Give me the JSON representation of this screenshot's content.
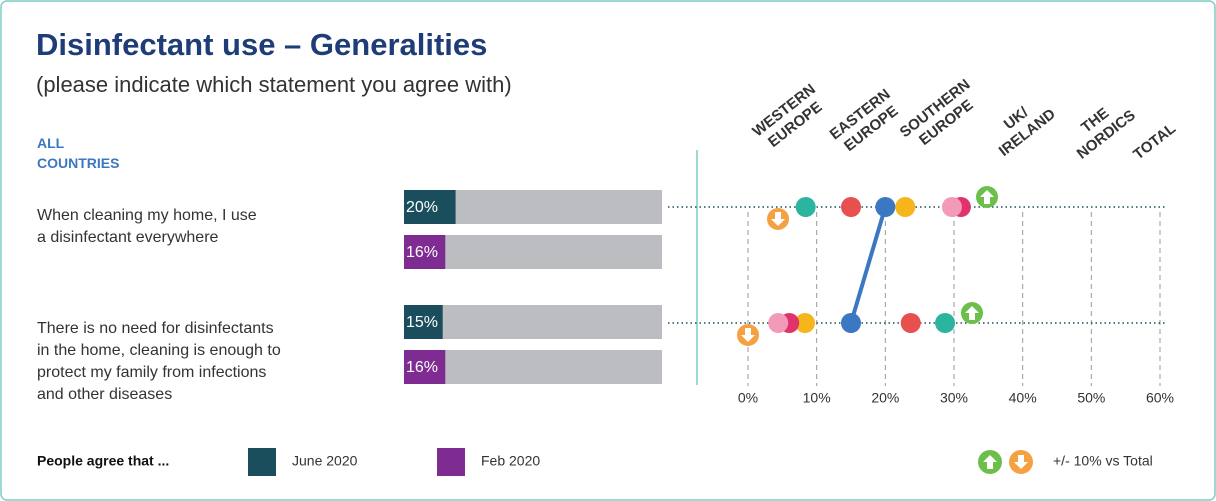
{
  "title": "Disinfectant use – Generalities",
  "subtitle": "(please indicate which statement you agree with)",
  "group_label": "ALL\nCOUNTRIES",
  "legend": {
    "title": "People agree that ...",
    "note": "+/- 10% vs Total"
  },
  "chart_data": [
    {
      "type": "bar",
      "orientation": "horizontal",
      "categories": [
        "When cleaning my home, I use\na disinfectant everywhere",
        "There is no need for disinfectants\nin the home, cleaning is enough to\nprotect my family from infections\nand other diseases"
      ],
      "series": [
        {
          "name": "June 2020",
          "color": "#1b4e5d",
          "values": [
            20,
            15
          ],
          "value_labels": [
            "20%",
            "15%"
          ]
        },
        {
          "name": "Feb 2020",
          "color": "#7e2c91",
          "values": [
            16,
            16
          ],
          "value_labels": [
            "16%",
            "16%"
          ]
        }
      ],
      "track_color": "#bcbdc0",
      "xlim": [
        0,
        100
      ]
    },
    {
      "type": "dot",
      "series": [
        {
          "name": "WESTERN\nEUROPE",
          "color": "#e8504f",
          "values": [
            15,
            23.7
          ]
        },
        {
          "name": "EASTERN\nEUROPE",
          "color": "#f7b51c",
          "values": [
            22.9,
            8.3
          ]
        },
        {
          "name": "SOUTHERN\nEUROPE",
          "color": "#e0336b",
          "values": [
            31,
            6
          ]
        },
        {
          "name": "UK/\nIRELAND",
          "color": "#f49ab9",
          "values": [
            29.7,
            4.4
          ]
        },
        {
          "name": "THE\nNORDICS",
          "color": "#2bb59f",
          "values": [
            8.4,
            28.7
          ]
        },
        {
          "name": "TOTAL",
          "color": "#3b78c1",
          "values": [
            20,
            15
          ]
        }
      ],
      "xlim": [
        0,
        60
      ],
      "xticks": [
        {
          "value": 0,
          "label": "0%"
        },
        {
          "value": 10,
          "label": "10%"
        },
        {
          "value": 20,
          "label": "20%"
        },
        {
          "value": 30,
          "label": "30%"
        },
        {
          "value": 40,
          "label": "40%"
        },
        {
          "value": 50,
          "label": "50%"
        },
        {
          "value": 60,
          "label": "60%"
        }
      ],
      "grid": true
    }
  ]
}
